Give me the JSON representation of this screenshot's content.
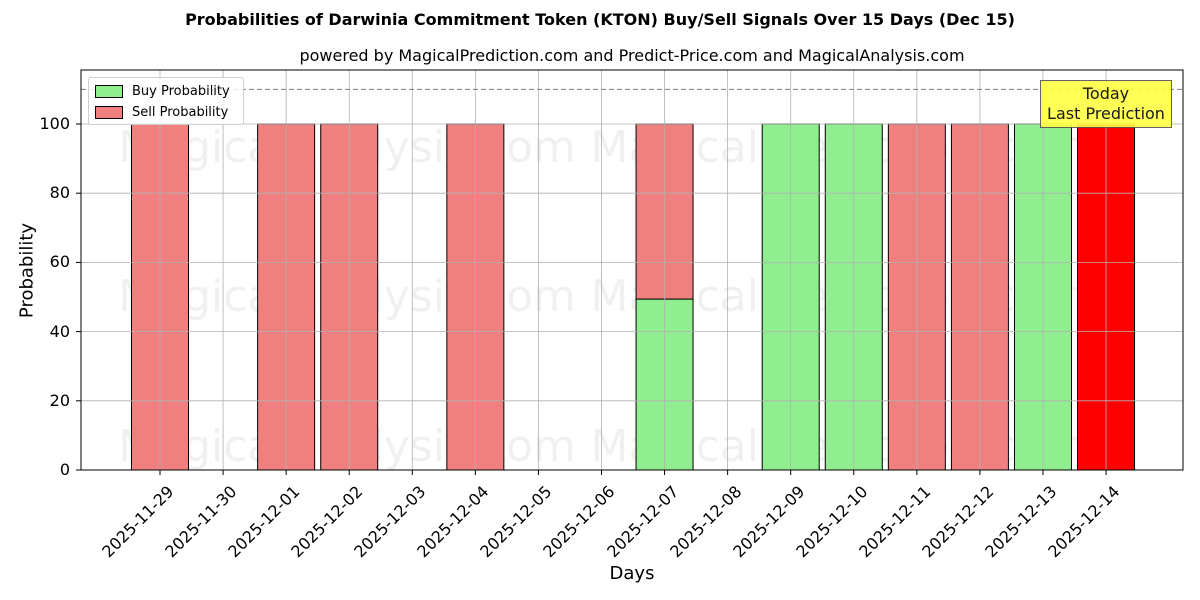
{
  "title": "Probabilities of Darwinia Commitment Token (KTON) Buy/Sell Signals Over 15 Days (Dec 15)",
  "subtitle": "powered by MagicalPrediction.com and Predict-Price.com and MagicalAnalysis.com",
  "legend": {
    "buy_label": "Buy Probability",
    "sell_label": "Sell Probability"
  },
  "annotation": {
    "line1": "Today",
    "line2": "Last Prediction"
  },
  "watermarks": [
    "MagicalAnalysis.com",
    "MagicalPrediction.com"
  ],
  "colors": {
    "buy": "#90ee90",
    "sell": "#f08080",
    "today_sell": "#ff0000",
    "annotation_bg": "#ffff44",
    "grid": "#b0b0b0",
    "dashed_line": "#808080"
  },
  "chart_data": {
    "type": "bar",
    "stacked": true,
    "title": "Probabilities of Darwinia Commitment Token (KTON) Buy/Sell Signals Over 15 Days (Dec 15)",
    "subtitle": "powered by MagicalPrediction.com and Predict-Price.com and MagicalAnalysis.com",
    "xlabel": "Days",
    "ylabel": "Probability",
    "ylim": [
      0,
      115
    ],
    "yticks": [
      0,
      20,
      40,
      60,
      80,
      100
    ],
    "grid": true,
    "legend_position": "upper left",
    "reference_line": {
      "y": 110,
      "style": "dashed"
    },
    "categories": [
      "2025-11-29",
      "2025-11-30",
      "2025-12-01",
      "2025-12-02",
      "2025-12-03",
      "2025-12-04",
      "2025-12-05",
      "2025-12-06",
      "2025-12-07",
      "2025-12-08",
      "2025-12-09",
      "2025-12-10",
      "2025-12-11",
      "2025-12-12",
      "2025-12-13",
      "2025-12-14"
    ],
    "series": [
      {
        "name": "Buy Probability",
        "values": [
          0,
          0,
          0,
          0,
          0,
          0,
          0,
          0,
          49.4,
          0,
          100,
          100,
          0,
          0,
          100,
          0
        ]
      },
      {
        "name": "Sell Probability",
        "values": [
          100,
          0,
          100,
          100,
          0,
          100,
          0,
          0,
          50.6,
          0,
          0,
          0,
          100,
          100,
          0,
          100
        ]
      }
    ],
    "annotations": [
      {
        "text": "Today\nLast Prediction",
        "x": "2025-12-14"
      }
    ]
  }
}
